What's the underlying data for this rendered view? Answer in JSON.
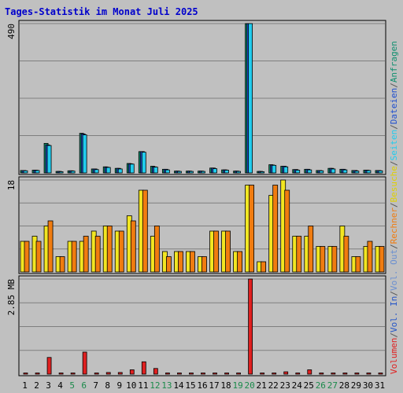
{
  "chart_data": {
    "type": "bar",
    "title": "Tages-Statistik im Monat Juli 2025",
    "categories": [
      "1",
      "2",
      "3",
      "4",
      "5",
      "6",
      "7",
      "8",
      "9",
      "10",
      "11",
      "12",
      "13",
      "14",
      "15",
      "16",
      "17",
      "18",
      "19",
      "20",
      "21",
      "22",
      "23",
      "24",
      "25",
      "26",
      "27",
      "28",
      "29",
      "30",
      "31"
    ],
    "weekend_categories": [
      "5",
      "6",
      "12",
      "13",
      "19",
      "20",
      "26",
      "27"
    ],
    "panels": [
      {
        "id": "top",
        "max_label": "490",
        "ylim": [
          0,
          490
        ],
        "series": [
          {
            "name": "Anfragen",
            "color": "#0f8f6f",
            "values": [
              8,
              9,
              97,
              5,
              7,
              130,
              13,
              20,
              15,
              31,
              70,
              22,
              12,
              6,
              6,
              6,
              16,
              10,
              6,
              490,
              5,
              27,
              22,
              11,
              12,
              8,
              15,
              12,
              8,
              9,
              8
            ]
          },
          {
            "name": "Dateien",
            "color": "#1f4fcf",
            "values": [
              8,
              9,
              92,
              5,
              7,
              128,
              13,
              19,
              15,
              30,
              70,
              20,
              12,
              6,
              6,
              6,
              16,
              10,
              6,
              490,
              5,
              26,
              22,
              11,
              12,
              8,
              15,
              12,
              8,
              9,
              8
            ]
          },
          {
            "name": "Seiten",
            "color": "#22ccee",
            "values": [
              7,
              8,
              90,
              4,
              6,
              125,
              11,
              18,
              13,
              29,
              68,
              19,
              10,
              5,
              5,
              5,
              14,
              9,
              5,
              490,
              4,
              25,
              20,
              9,
              10,
              7,
              13,
              10,
              6,
              8,
              7
            ]
          }
        ]
      },
      {
        "id": "middle",
        "max_label": "18",
        "ylim": [
          0,
          18
        ],
        "series": [
          {
            "name": "Besuche",
            "color": "#f2e622",
            "values": [
              6,
              7,
              9,
              3,
              6,
              6,
              8,
              9,
              8,
              11,
              16,
              7,
              4,
              4,
              4,
              3,
              8,
              8,
              4,
              17,
              2,
              15,
              18,
              7,
              7,
              5,
              5,
              9,
              3,
              5,
              5
            ]
          },
          {
            "name": "Rechner",
            "color": "#f07c10",
            "values": [
              6,
              6,
              10,
              3,
              6,
              7,
              7,
              9,
              8,
              10,
              16,
              9,
              3,
              4,
              4,
              3,
              8,
              8,
              4,
              17,
              2,
              17,
              16,
              7,
              9,
              5,
              5,
              7,
              3,
              6,
              5
            ]
          }
        ]
      },
      {
        "id": "bottom",
        "max_label": "2.85 MB",
        "ylim": [
          0,
          2.85
        ],
        "series": [
          {
            "name": "Vol. Out",
            "color": "#6a8fd0",
            "values": [
              0,
              0,
              0,
              0,
              0,
              0,
              0,
              0,
              0,
              0,
              0,
              0,
              0,
              0,
              0,
              0,
              0,
              0,
              0,
              0,
              0,
              0,
              0,
              0,
              0,
              0,
              0,
              0,
              0,
              0,
              0
            ]
          },
          {
            "name": "Vol. In",
            "color": "#2455c8",
            "values": [
              0,
              0,
              0,
              0,
              0,
              0,
              0,
              0,
              0,
              0,
              0,
              0,
              0,
              0,
              0,
              0,
              0,
              0,
              0,
              0,
              0,
              0,
              0,
              0,
              0,
              0,
              0,
              0,
              0,
              0,
              0
            ]
          },
          {
            "name": "Volumen",
            "color": "#e02020",
            "values": [
              0.02,
              0.02,
              0.5,
              0.02,
              0.02,
              0.66,
              0.02,
              0.05,
              0.05,
              0.13,
              0.37,
              0.17,
              0.02,
              0.02,
              0.02,
              0.02,
              0.02,
              0.02,
              0.02,
              2.85,
              0.02,
              0.02,
              0.07,
              0.02,
              0.13,
              0.02,
              0.02,
              0.02,
              0.02,
              0.02,
              0.02
            ]
          }
        ]
      }
    ],
    "right_legend": [
      {
        "text": "Volumen",
        "color": "#e02020"
      },
      {
        "text": "/",
        "color": "#555555"
      },
      {
        "text": "Vol. In",
        "color": "#2455c8"
      },
      {
        "text": "/",
        "color": "#555555"
      },
      {
        "text": "Vol. Out",
        "color": "#6a8fd0"
      },
      {
        "text": "/",
        "color": "#555555"
      },
      {
        "text": "Rechner",
        "color": "#f07c10"
      },
      {
        "text": "/",
        "color": "#555555"
      },
      {
        "text": "Besuche",
        "color": "#e0d000"
      },
      {
        "text": "/",
        "color": "#555555"
      },
      {
        "text": "Seiten",
        "color": "#22ccee"
      },
      {
        "text": "/",
        "color": "#555555"
      },
      {
        "text": "Dateien",
        "color": "#1f4fcf"
      },
      {
        "text": "/",
        "color": "#555555"
      },
      {
        "text": "Anfragen",
        "color": "#0f8f6f"
      }
    ],
    "colors": {
      "background": "#c0c0c0",
      "title": "#0000cc",
      "weekday_label": "#000000",
      "weekend_label": "#1a8a4a",
      "grid": "#7f7f7f"
    }
  }
}
